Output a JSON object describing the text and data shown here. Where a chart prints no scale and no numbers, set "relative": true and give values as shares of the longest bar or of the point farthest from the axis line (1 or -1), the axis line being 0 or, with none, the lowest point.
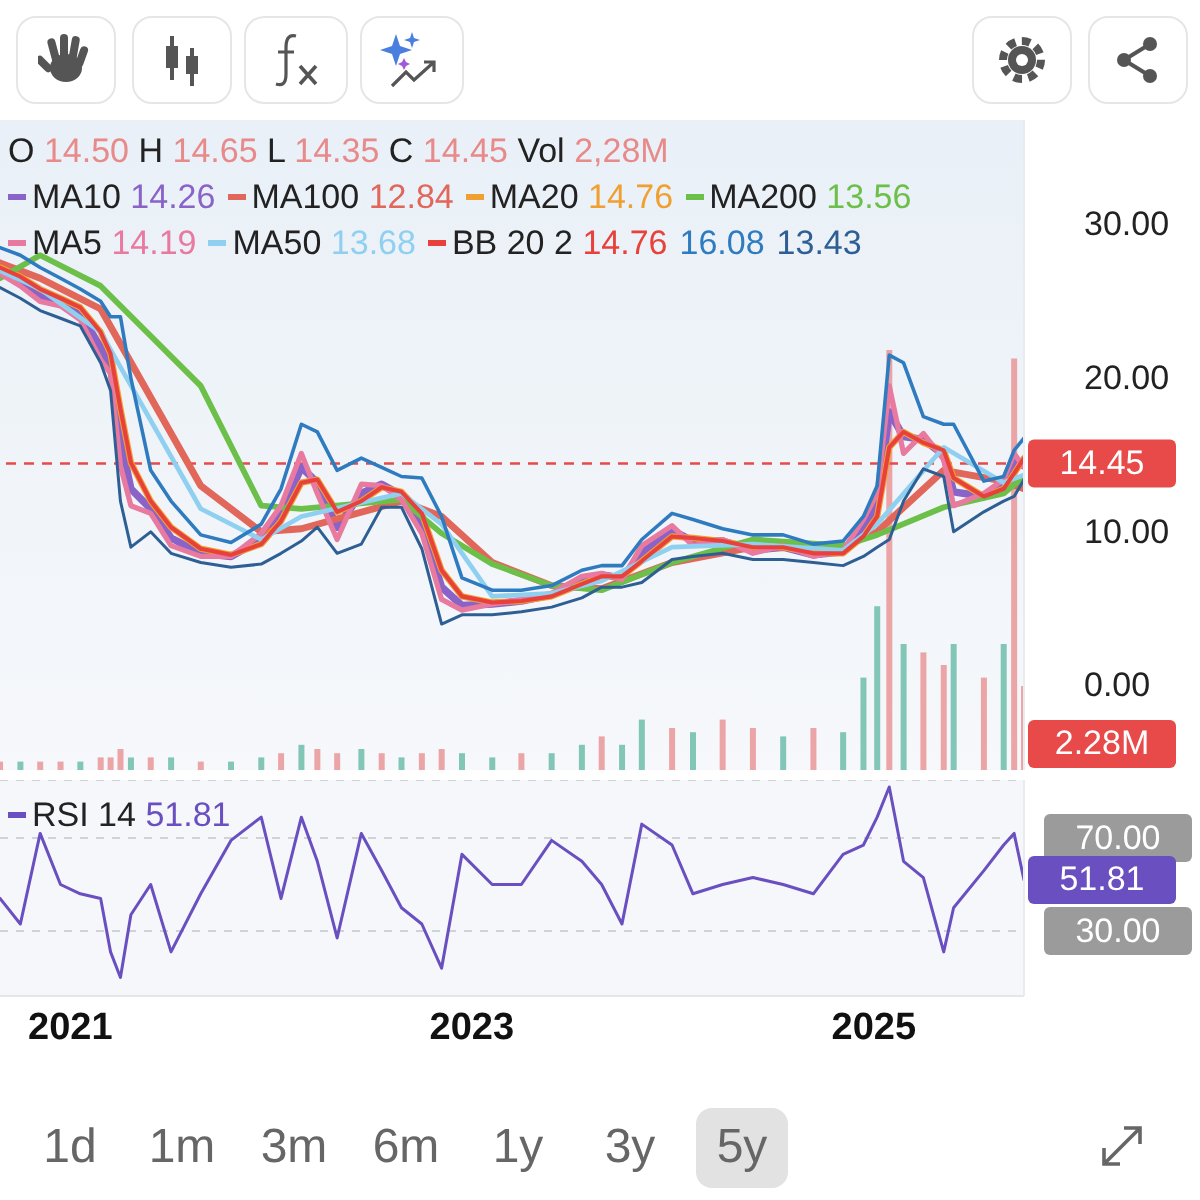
{
  "chart_data": [
    {
      "type": "line",
      "x": [
        "2020-08-26",
        "2020-10-02",
        "2020-11-07",
        "2020-12-14",
        "2021-01-19",
        "2021-02-25",
        "2021-03-15",
        "2021-04-02",
        "2021-04-21",
        "2021-05-27",
        "2021-07-03",
        "2021-08-26",
        "2021-10-20",
        "2021-12-14",
        "2022-01-19",
        "2022-02-25",
        "2022-03-26",
        "2022-05-01",
        "2022-06-14",
        "2022-07-21",
        "2022-08-26",
        "2022-10-02",
        "2022-11-07",
        "2022-12-14",
        "2023-02-07",
        "2023-04-01",
        "2023-05-26",
        "2023-07-20",
        "2023-08-25",
        "2023-10-01",
        "2023-11-06",
        "2023-12-31",
        "2024-02-07",
        "2024-04-01",
        "2024-05-26",
        "2024-07-20",
        "2024-09-13",
        "2024-11-06",
        "2024-12-13",
        "2025-01-07",
        "2025-01-29",
        "2025-02-24",
        "2025-04-01",
        "2025-05-08",
        "2025-05-26",
        "2025-07-20",
        "2025-08-25",
        "2025-09-13",
        "2025-10-01"
      ],
      "xlim": [
        "2020-08-26",
        "2025-10-01"
      ],
      "ylim": [
        -5.5,
        36.8
      ],
      "yticks": [
        {
          "value": 0,
          "label": "0.00"
        },
        {
          "value": 10,
          "label": "10.00"
        },
        {
          "value": 20,
          "label": "20.00"
        },
        {
          "value": 30,
          "label": "30.00"
        }
      ],
      "tick_labels": "y",
      "legend": "top",
      "annotations": [
        "O 14.50 H 14.65 L 14.35 C 14.45 Vol 2,28M"
      ],
      "ref_lines": [
        {
          "axis": "y",
          "value": 14.45,
          "label": "14.45",
          "color": "#e84a4a",
          "line_style": "dashed"
        }
      ],
      "series": [
        {
          "name": "MA10 14.26",
          "color": "#8a63c9",
          "values": [
            27,
            26.3,
            25.4,
            24.9,
            24.2,
            22,
            20.8,
            16,
            12.8,
            11.5,
            9.6,
            8.6,
            8.4,
            9.5,
            11.2,
            14.2,
            13.2,
            10.3,
            12.5,
            13.1,
            12.4,
            10.5,
            6.4,
            5.2,
            5.3,
            5.5,
            5.9,
            6.9,
            7.2,
            7,
            8.6,
            10.1,
            9.4,
            9.4,
            8.8,
            9,
            8.5,
            8.7,
            10.2,
            11.8,
            17.8,
            16.2,
            16,
            15,
            12.6,
            12.3,
            13.1,
            14.5,
            14.3
          ]
        },
        {
          "name": "MA100 12.84",
          "color": "#e0675a",
          "x": [
            "2020-08-26",
            "2020-11-07",
            "2021-02-25",
            "2021-08-26",
            "2021-12-14",
            "2022-02-25",
            "2022-08-26",
            "2022-11-07",
            "2023-02-07",
            "2023-05-26",
            "2023-08-25",
            "2023-12-31",
            "2024-05-26",
            "2024-11-06",
            "2025-01-07",
            "2025-05-08",
            "2025-08-25",
            "2025-10-01"
          ],
          "values": [
            27.5,
            26.5,
            24.5,
            13,
            10,
            10.2,
            12,
            11,
            8,
            6.5,
            6.3,
            8,
            9,
            9,
            10,
            14,
            13.3,
            12.8
          ]
        },
        {
          "name": "MA20 14.76",
          "color": "#f0a030",
          "values": [
            27.2,
            26.6,
            25.8,
            25.2,
            24.6,
            23,
            21.6,
            18,
            14.5,
            12,
            10.3,
            8.9,
            8.5,
            9.2,
            10.7,
            13.2,
            13.4,
            11.3,
            12,
            12.9,
            12.6,
            11.2,
            7.5,
            5.8,
            5.4,
            5.5,
            5.8,
            6.6,
            7.1,
            7.1,
            8.1,
            9.7,
            9.6,
            9.4,
            9,
            9,
            8.6,
            8.6,
            9.7,
            11,
            15.5,
            16.5,
            15.8,
            15.3,
            13.5,
            12.3,
            12.8,
            13.8,
            14.8
          ]
        },
        {
          "name": "MA200 13.56",
          "color": "#6cc04a",
          "x": [
            "2020-08-26",
            "2020-11-07",
            "2021-02-25",
            "2021-08-26",
            "2021-12-14",
            "2022-02-25",
            "2022-08-26",
            "2022-11-07",
            "2023-02-07",
            "2023-05-26",
            "2023-08-25",
            "2023-12-31",
            "2024-05-26",
            "2024-11-06",
            "2025-01-07",
            "2025-05-08",
            "2025-08-25",
            "2025-10-01"
          ],
          "values": [
            26.5,
            28,
            26,
            19.5,
            11.7,
            11.5,
            12.1,
            9.9,
            7.9,
            6.5,
            6.2,
            8,
            9.5,
            9.1,
            9.8,
            11.6,
            12.5,
            13.6
          ]
        },
        {
          "name": "MA5 14.19",
          "color": "#e87aa0",
          "values": [
            26.8,
            26,
            25,
            24.7,
            23.8,
            21.2,
            20.3,
            14.3,
            11.7,
            11.2,
            9.1,
            8.4,
            8.4,
            9.9,
            11.7,
            15.1,
            12.5,
            9.5,
            13.1,
            13,
            12.1,
            9.9,
            5.6,
            4.9,
            5.3,
            5.6,
            6,
            7.1,
            7.3,
            6.9,
            9.1,
            10.4,
            9.1,
            9.5,
            8.6,
            9.1,
            8.4,
            8.8,
            10.8,
            12.5,
            19.5,
            15.1,
            16.4,
            14.7,
            11.7,
            12.5,
            13.4,
            15.1,
            14.2
          ]
        },
        {
          "name": "MA50 13.68",
          "color": "#8fd0f0",
          "x": [
            "2020-08-26",
            "2020-11-07",
            "2021-02-25",
            "2021-08-26",
            "2021-12-14",
            "2022-02-25",
            "2022-08-26",
            "2022-11-07",
            "2023-02-07",
            "2023-05-26",
            "2023-08-25",
            "2023-12-31",
            "2024-05-26",
            "2024-11-06",
            "2025-01-07",
            "2025-05-08",
            "2025-08-25",
            "2025-10-01"
          ],
          "values": [
            27,
            25.8,
            23,
            11.5,
            9.5,
            11,
            12.5,
            10.5,
            5.8,
            6,
            6.8,
            9,
            9.2,
            8.8,
            10.5,
            15.5,
            13.2,
            13.7
          ]
        },
        {
          "name": "BB 20 2 14.76",
          "color": "#e8413c",
          "values": [
            27.2,
            26.6,
            25.8,
            25.2,
            24.6,
            23,
            21.6,
            18,
            14.5,
            12,
            10.3,
            8.9,
            8.5,
            9.2,
            10.7,
            13.2,
            13.4,
            11.3,
            12,
            12.9,
            12.6,
            11.2,
            7.5,
            5.8,
            5.4,
            5.5,
            5.8,
            6.6,
            7.1,
            7.1,
            8.1,
            9.7,
            9.6,
            9.4,
            9,
            9,
            8.6,
            8.6,
            9.7,
            11,
            15.5,
            16.5,
            15.8,
            15.3,
            13.5,
            12.3,
            12.8,
            13.8,
            14.8
          ]
        },
        {
          "name": "16.08",
          "color": "#2f7bbf",
          "values": [
            28.5,
            28,
            27.2,
            26.5,
            25.8,
            25,
            24,
            24,
            20,
            14,
            12,
            9.8,
            9.3,
            10.5,
            12.8,
            17,
            16.5,
            14,
            14.8,
            14.2,
            13.6,
            13.5,
            11,
            7,
            6.2,
            6.2,
            6.5,
            7.5,
            7.8,
            7.8,
            9.5,
            11.2,
            10.8,
            10.2,
            9.8,
            9.8,
            9.2,
            9.4,
            11,
            13,
            21.5,
            21,
            17.5,
            17,
            17,
            13.3,
            13.6,
            15.3,
            16.1
          ]
        },
        {
          "name": "13.43",
          "color": "#2e5f94",
          "values": [
            25.9,
            25.2,
            24.4,
            23.9,
            23.4,
            21,
            19.2,
            12,
            9,
            10,
            8.6,
            8,
            7.7,
            7.9,
            8.6,
            9.4,
            10.3,
            8.6,
            9.2,
            11.6,
            11.6,
            8.9,
            4,
            4.6,
            4.6,
            4.8,
            5.1,
            5.7,
            6.4,
            6.4,
            6.7,
            8.2,
            8.4,
            8.6,
            8.2,
            8.2,
            8,
            7.8,
            8.4,
            9,
            9.5,
            12,
            14.1,
            13.6,
            10,
            11.3,
            12,
            12.3,
            13.4
          ]
        }
      ]
    },
    {
      "type": "bar",
      "relative": true,
      "tick_labels": false,
      "x": [
        "2020-08-26",
        "2020-10-02",
        "2020-11-07",
        "2020-12-14",
        "2021-01-19",
        "2021-02-25",
        "2021-03-15",
        "2021-04-02",
        "2021-04-21",
        "2021-05-27",
        "2021-07-03",
        "2021-08-26",
        "2021-10-20",
        "2021-12-14",
        "2022-01-19",
        "2022-02-25",
        "2022-03-26",
        "2022-05-01",
        "2022-06-14",
        "2022-07-21",
        "2022-08-26",
        "2022-10-02",
        "2022-11-07",
        "2022-12-14",
        "2023-02-07",
        "2023-04-01",
        "2023-05-26",
        "2023-07-20",
        "2023-08-25",
        "2023-10-01",
        "2023-11-06",
        "2023-12-31",
        "2024-02-07",
        "2024-04-01",
        "2024-05-26",
        "2024-07-20",
        "2024-09-13",
        "2024-11-06",
        "2024-12-13",
        "2025-01-07",
        "2025-01-29",
        "2025-02-24",
        "2025-04-01",
        "2025-05-08",
        "2025-05-26",
        "2025-07-20",
        "2025-08-25",
        "2025-09-13",
        "2025-10-01"
      ],
      "xlim": [
        "2020-08-26",
        "2025-10-01"
      ],
      "values": [
        0.02,
        0.02,
        0.02,
        0.02,
        0.02,
        0.03,
        0.03,
        0.05,
        0.03,
        0.03,
        0.03,
        0.02,
        0.02,
        0.03,
        0.04,
        0.06,
        0.05,
        0.04,
        0.05,
        0.04,
        0.03,
        0.04,
        0.05,
        0.04,
        0.03,
        0.04,
        0.04,
        0.06,
        0.08,
        0.06,
        0.12,
        0.1,
        0.09,
        0.12,
        0.1,
        0.08,
        0.1,
        0.09,
        0.22,
        0.39,
        1,
        0.3,
        0.28,
        0.25,
        0.3,
        0.22,
        0.3,
        0.98,
        0.2
      ],
      "colors": [
        "#e88a8a",
        "#5bb5a0",
        "#e88a8a",
        "#e88a8a",
        "#5bb5a0",
        "#e88a8a",
        "#e88a8a",
        "#e88a8a",
        "#5bb5a0",
        "#e88a8a",
        "#5bb5a0",
        "#e88a8a",
        "#5bb5a0",
        "#5bb5a0",
        "#e88a8a",
        "#5bb5a0",
        "#e88a8a",
        "#e88a8a",
        "#5bb5a0",
        "#e88a8a",
        "#5bb5a0",
        "#e88a8a",
        "#e88a8a",
        "#5bb5a0",
        "#5bb5a0",
        "#e88a8a",
        "#5bb5a0",
        "#5bb5a0",
        "#e88a8a",
        "#5bb5a0",
        "#5bb5a0",
        "#e88a8a",
        "#5bb5a0",
        "#e88a8a",
        "#e88a8a",
        "#5bb5a0",
        "#e88a8a",
        "#5bb5a0",
        "#5bb5a0",
        "#5bb5a0",
        "#e88a8a",
        "#5bb5a0",
        "#e88a8a",
        "#e88a8a",
        "#5bb5a0",
        "#e88a8a",
        "#5bb5a0",
        "#e88a8a",
        "#e88a8a"
      ],
      "annotations": [
        "2.28M"
      ]
    },
    {
      "type": "line",
      "x": [
        "2020-08-26",
        "2020-10-02",
        "2020-11-07",
        "2020-12-14",
        "2021-01-19",
        "2021-02-25",
        "2021-03-15",
        "2021-04-02",
        "2021-04-21",
        "2021-05-27",
        "2021-07-03",
        "2021-08-26",
        "2021-10-20",
        "2021-12-14",
        "2022-01-19",
        "2022-02-25",
        "2022-03-26",
        "2022-05-01",
        "2022-06-14",
        "2022-07-21",
        "2022-08-26",
        "2022-10-02",
        "2022-11-07",
        "2022-12-14",
        "2023-02-07",
        "2023-04-01",
        "2023-05-26",
        "2023-07-20",
        "2023-08-25",
        "2023-10-01",
        "2023-11-06",
        "2023-12-31",
        "2024-02-07",
        "2024-04-01",
        "2024-05-26",
        "2024-07-20",
        "2024-09-13",
        "2024-11-06",
        "2024-12-13",
        "2025-01-07",
        "2025-01-29",
        "2025-02-24",
        "2025-04-01",
        "2025-05-08",
        "2025-05-26",
        "2025-07-20",
        "2025-08-25",
        "2025-09-13",
        "2025-10-01"
      ],
      "xlim": [
        "2020-08-26",
        "2025-10-01"
      ],
      "xticks": [
        "2021",
        "2023",
        "2025"
      ],
      "ylim": [
        2,
        95
      ],
      "yticks": [
        {
          "value": 30,
          "label": "30.00"
        },
        {
          "value": 70,
          "label": "70.00"
        }
      ],
      "grid": "y",
      "legend": "top left",
      "series": [
        {
          "name": "RSI 14 51.81",
          "color": "#6a4fc0",
          "values": [
            44,
            33,
            72,
            50,
            46,
            44,
            21,
            10,
            37,
            50,
            21,
            46,
            69,
            79,
            44,
            79,
            60,
            27,
            72,
            56,
            40,
            33,
            14,
            63,
            50,
            50,
            69,
            60,
            50,
            33,
            76,
            67,
            46,
            50,
            53,
            50,
            46,
            63,
            67,
            79,
            92,
            60,
            53,
            21,
            40,
            56,
            67,
            72,
            52
          ]
        }
      ],
      "annotations": [
        {
          "text": "51.81",
          "x": "2025-10-01",
          "y": 51.81
        },
        "1d",
        "1m",
        "3m",
        "6m",
        "1y",
        "3y",
        "5y"
      ]
    }
  ]
}
